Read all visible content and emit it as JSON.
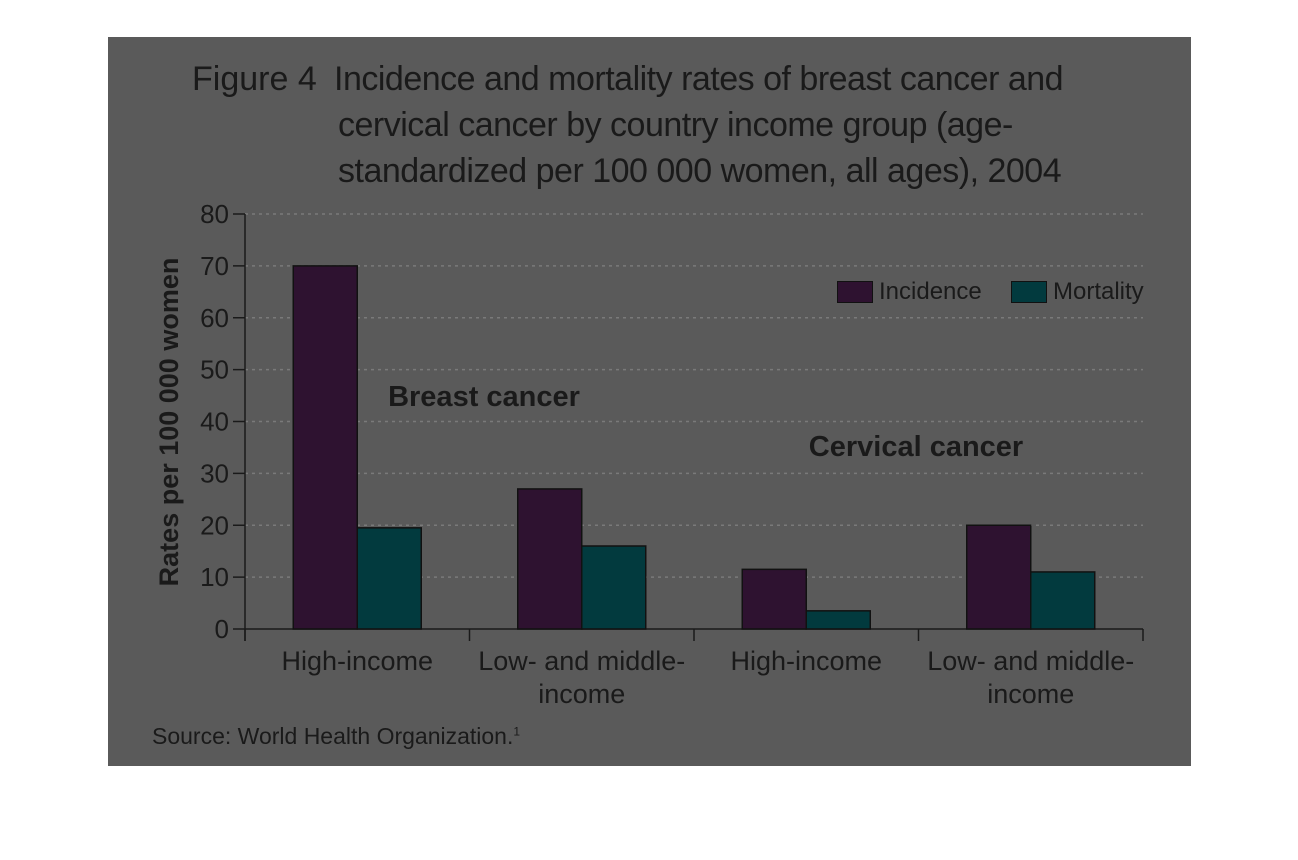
{
  "figure_label": "Figure 4",
  "title_lines": [
    "Incidence and mortality rates of breast cancer and",
    "cervical cancer by country income group (age-",
    "standardized per 100 000 women, all ages), 2004"
  ],
  "source": "Source: World Health Organization.",
  "source_ref": "1",
  "colors": {
    "incidence": "#2e1230",
    "mortality": "#023a3e",
    "panel": "#5a5a5a",
    "gridline": "#7a7a7a",
    "axis": "#1a1a1a",
    "text": "#1a1a1a"
  },
  "chart_data": {
    "type": "bar",
    "title": "Incidence and mortality rates of breast cancer and cervical cancer by country income group (age-standardized per 100 000 women, all ages), 2004",
    "ylabel": "Rates per 100 000 women",
    "xlabel": "",
    "ylim": [
      0,
      80
    ],
    "yticks": [
      0,
      10,
      20,
      30,
      40,
      50,
      60,
      70,
      80
    ],
    "grid": true,
    "legend_position": "top-right",
    "groups": [
      {
        "label": "Breast cancer",
        "categories": [
          "High-income",
          "Low- and middle-income"
        ]
      },
      {
        "label": "Cervical cancer",
        "categories": [
          "High-income",
          "Low- and middle-income"
        ]
      }
    ],
    "categories": [
      [
        "High-income"
      ],
      [
        "Low- and middle-",
        "income"
      ],
      [
        "High-income"
      ],
      [
        "Low- and middle-",
        "income"
      ]
    ],
    "series": [
      {
        "name": "Incidence",
        "values": [
          70,
          27,
          11.5,
          20
        ]
      },
      {
        "name": "Mortality",
        "values": [
          19.5,
          16,
          3.5,
          11
        ]
      }
    ]
  }
}
